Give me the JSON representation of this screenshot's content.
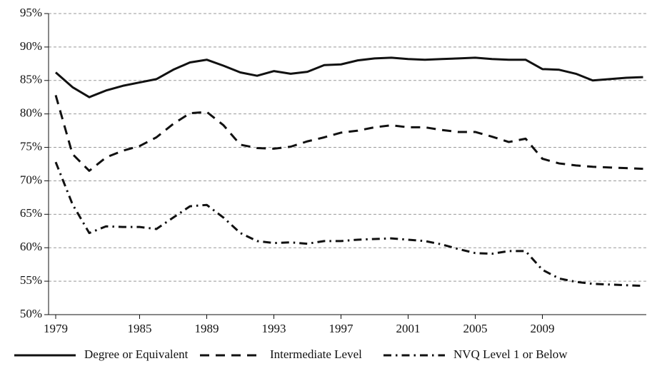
{
  "chart_data": {
    "type": "line",
    "categories": [
      "1979",
      null,
      null,
      null,
      null,
      "1985",
      null,
      null,
      null,
      "1989",
      null,
      null,
      null,
      "1993",
      null,
      null,
      null,
      "1997",
      null,
      null,
      null,
      "2001",
      null,
      null,
      null,
      "2005",
      null,
      null,
      null,
      "2009",
      null,
      null,
      null,
      null,
      null,
      null
    ],
    "series": [
      {
        "name": "Degree or Equivalent",
        "color": "#111111",
        "dash": "solid",
        "values": [
          86.2,
          84.0,
          82.5,
          83.5,
          84.2,
          84.7,
          85.2,
          86.6,
          87.7,
          88.1,
          87.2,
          86.2,
          85.7,
          86.4,
          86.0,
          86.3,
          87.3,
          87.4,
          88.0,
          88.3,
          88.4,
          88.2,
          88.1,
          88.2,
          88.3,
          88.4,
          88.2,
          88.1,
          88.1,
          86.7,
          86.6,
          86.0,
          85.0,
          85.2,
          85.4,
          85.5
        ]
      },
      {
        "name": "Intermediate Level",
        "color": "#111111",
        "dash": "dashed",
        "values": [
          82.8,
          74.0,
          71.5,
          73.5,
          74.5,
          75.2,
          76.5,
          78.5,
          80.1,
          80.3,
          78.3,
          75.4,
          74.9,
          74.8,
          75.1,
          75.9,
          76.5,
          77.2,
          77.5,
          78.0,
          78.3,
          78.0,
          78.0,
          77.6,
          77.3,
          77.3,
          76.6,
          75.8,
          76.3,
          73.3,
          72.6,
          72.3,
          72.1,
          72.0,
          71.9,
          71.8
        ]
      },
      {
        "name": "NVQ Level 1 or Below",
        "color": "#111111",
        "dash": "dashdot",
        "values": [
          72.8,
          66.5,
          62.2,
          63.2,
          63.1,
          63.1,
          62.8,
          64.5,
          66.2,
          66.4,
          64.5,
          62.2,
          61.0,
          60.7,
          60.8,
          60.6,
          61.0,
          61.0,
          61.2,
          61.3,
          61.4,
          61.2,
          61.0,
          60.5,
          59.8,
          59.2,
          59.1,
          59.5,
          59.5,
          56.7,
          55.4,
          54.9,
          54.6,
          54.5,
          54.4,
          54.3
        ]
      }
    ],
    "ylim": [
      50,
      95
    ],
    "yticks": [
      {
        "value": 50,
        "label": "50%"
      },
      {
        "value": 55,
        "label": "55%"
      },
      {
        "value": 60,
        "label": "60%"
      },
      {
        "value": 65,
        "label": "65%"
      },
      {
        "value": 70,
        "label": "70%"
      },
      {
        "value": 75,
        "label": "75%"
      },
      {
        "value": 80,
        "label": "80%"
      },
      {
        "value": 85,
        "label": "85%"
      },
      {
        "value": 90,
        "label": "90%"
      },
      {
        "value": 95,
        "label": "95%"
      }
    ],
    "grid": true,
    "legend": "bottom"
  }
}
